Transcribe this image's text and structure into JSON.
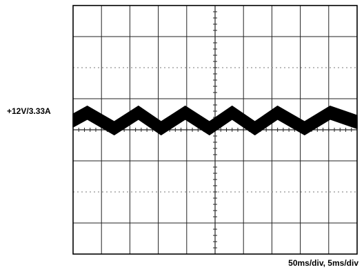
{
  "chart_data": {
    "type": "line",
    "title": "",
    "xlabel": "",
    "ylabel": "",
    "grid": true,
    "x_divisions": 10,
    "y_divisions": 8,
    "xlim": [
      0,
      10
    ],
    "ylim": [
      -4,
      4
    ],
    "series": [
      {
        "name": "+12V/3.33A",
        "kind": "ripple-waveform",
        "x": [
          0,
          0.5,
          1.45,
          2.3,
          3.1,
          3.95,
          4.8,
          5.6,
          6.4,
          7.2,
          8.15,
          9.05,
          10
        ],
        "y": [
          0.3,
          0.55,
          0.05,
          0.55,
          0.05,
          0.55,
          0.05,
          0.55,
          0.05,
          0.55,
          0.05,
          0.55,
          0.25
        ],
        "band_thickness_div": 0.42,
        "color": "#000000"
      }
    ]
  },
  "labels": {
    "channel": "+12V/3.33A",
    "timebase": "50ms/div,  5ms/div"
  }
}
